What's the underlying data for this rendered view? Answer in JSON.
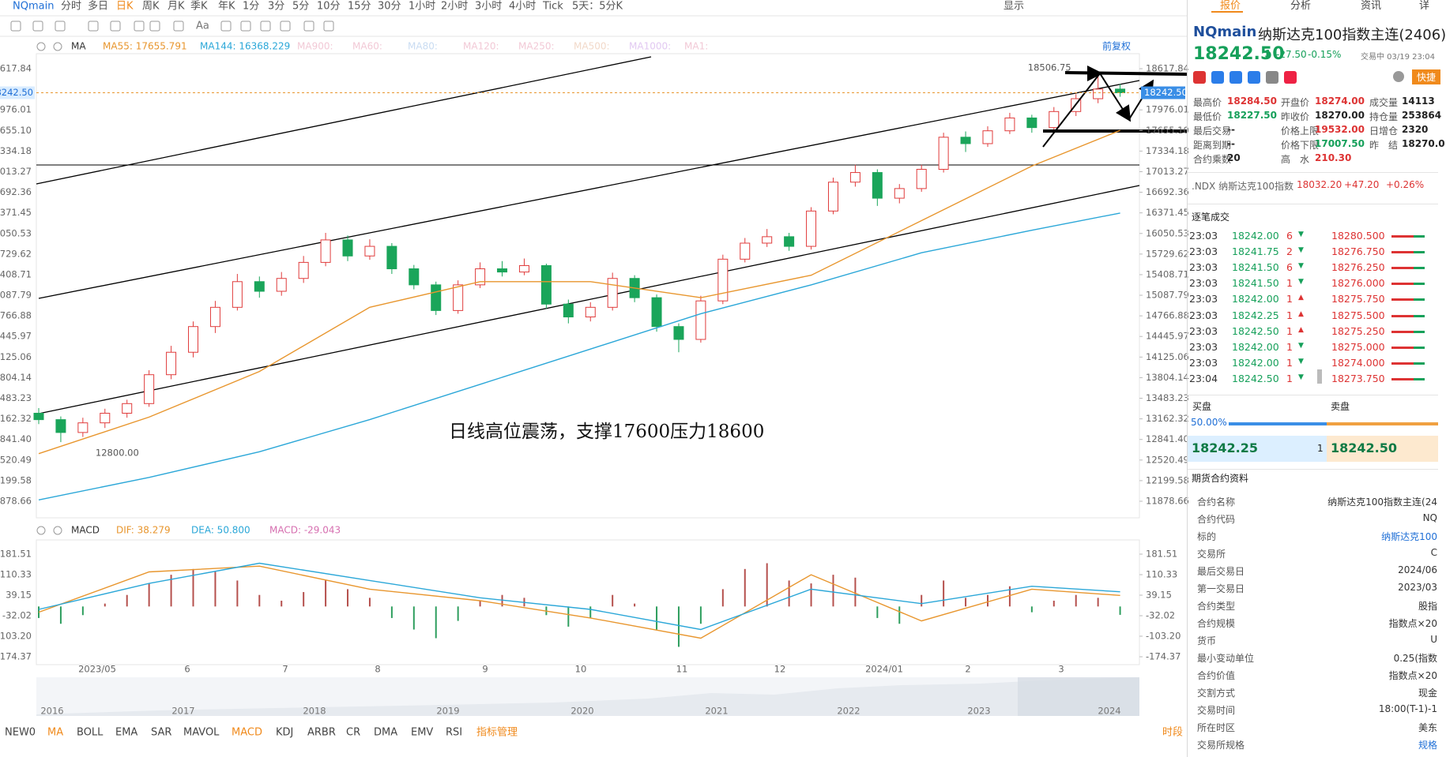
{
  "toolbar": {
    "symbol": "NQmain",
    "periods": [
      "分时",
      "多日",
      "日K",
      "周K",
      "月K",
      "季K",
      "年K",
      "1分",
      "3分",
      "5分",
      "10分",
      "15分",
      "30分",
      "1小时",
      "2小时",
      "3小时",
      "4小时",
      "Tick",
      "5天：5分K"
    ],
    "display": "显示",
    "font_tool": "Aa"
  },
  "ma_bar": {
    "label": "MA",
    "items": [
      {
        "text": "MA55: 17655.791",
        "color": "#e8962e"
      },
      {
        "text": "MA144: 16368.229",
        "color": "#2ba7d8"
      },
      {
        "text": "MA900:",
        "color": "#f2c9d6"
      },
      {
        "text": "MA60:",
        "color": "#f2c9d6"
      },
      {
        "text": "MA80:",
        "color": "#c9dcf2"
      },
      {
        "text": "MA120:",
        "color": "#f2c9d6"
      },
      {
        "text": "MA250:",
        "color": "#f2c9d6"
      },
      {
        "text": "MA500:",
        "color": "#f2d9c9"
      },
      {
        "text": "MA1000:",
        "color": "#e2c9f2"
      },
      {
        "text": "MA1:",
        "color": "#f2c9d6"
      }
    ],
    "adjust": "前复权"
  },
  "annotation": "日线高位震荡，支撑17600压力18600",
  "chart_data": {
    "type": "candlestick",
    "ylim": [
      11878.66,
      18617.84
    ],
    "yticks": [
      18617.84,
      17976.01,
      {
        "value": 17655.1,
        "label": "17655.10"
      },
      17334.18,
      17013.27,
      16692.36,
      16371.45,
      16050.53,
      15729.62,
      15408.71,
      15087.79,
      14766.88,
      14445.97,
      14125.06,
      13804.14,
      13483.23,
      13162.32,
      {
        "value": 12841.4,
        "label": "12841.40"
      },
      12520.49,
      12199.58,
      11878.66
    ],
    "x_labels": [
      "2023/05",
      "6",
      "7",
      "8",
      "9",
      "10",
      "11",
      "12",
      "2024/01",
      "2",
      "3"
    ],
    "up_color": "#e03c3c",
    "down_color": "#1aa55a",
    "candles": [
      [
        13250,
        13330,
        13080,
        13150
      ],
      [
        13150,
        13200,
        12800,
        12950
      ],
      [
        12950,
        13180,
        12880,
        13100
      ],
      [
        13100,
        13320,
        13020,
        13250
      ],
      [
        13250,
        13460,
        13180,
        13400
      ],
      [
        13400,
        13920,
        13350,
        13850
      ],
      [
        13850,
        14300,
        13780,
        14200
      ],
      [
        14200,
        14680,
        14120,
        14600
      ],
      [
        14600,
        15000,
        14500,
        14900
      ],
      [
        14900,
        15420,
        14850,
        15300
      ],
      [
        15300,
        15380,
        15050,
        15150
      ],
      [
        15150,
        15450,
        15080,
        15350
      ],
      [
        15350,
        15700,
        15280,
        15600
      ],
      [
        15600,
        16060,
        15540,
        15950
      ],
      [
        15950,
        16020,
        15620,
        15700
      ],
      [
        15700,
        15960,
        15640,
        15850
      ],
      [
        15850,
        15900,
        15420,
        15500
      ],
      [
        15500,
        15560,
        15180,
        15250
      ],
      [
        15250,
        15300,
        14780,
        14850
      ],
      [
        14850,
        15320,
        14800,
        15250
      ],
      [
        15250,
        15600,
        15200,
        15500
      ],
      [
        15500,
        15620,
        15380,
        15450
      ],
      [
        15450,
        15660,
        15400,
        15550
      ],
      [
        15550,
        15580,
        14880,
        14950
      ],
      [
        14950,
        15020,
        14650,
        14750
      ],
      [
        14750,
        14980,
        14680,
        14900
      ],
      [
        14900,
        15440,
        14850,
        15350
      ],
      [
        15350,
        15400,
        14980,
        15050
      ],
      [
        15050,
        15100,
        14520,
        14600
      ],
      [
        14600,
        14650,
        14200,
        14400
      ],
      [
        14400,
        15080,
        14350,
        15000
      ],
      [
        15000,
        15720,
        14950,
        15650
      ],
      [
        15650,
        15980,
        15600,
        15900
      ],
      [
        15900,
        16120,
        15840,
        16000
      ],
      [
        16000,
        16060,
        15780,
        15850
      ],
      [
        15850,
        16460,
        15800,
        16400
      ],
      [
        16400,
        16920,
        16350,
        16850
      ],
      [
        16850,
        17120,
        16780,
        17000
      ],
      [
        17000,
        17050,
        16480,
        16600
      ],
      [
        16600,
        16820,
        16520,
        16750
      ],
      [
        16750,
        17120,
        16700,
        17050
      ],
      [
        17050,
        17620,
        17000,
        17550
      ],
      [
        17550,
        17640,
        17320,
        17450
      ],
      [
        17450,
        17720,
        17400,
        17650
      ],
      [
        17650,
        17930,
        17600,
        17850
      ],
      [
        17850,
        17900,
        17620,
        17700
      ],
      [
        17700,
        18020,
        17650,
        17950
      ],
      [
        17950,
        18220,
        17880,
        18150
      ],
      [
        18150,
        18506.75,
        18080,
        18300
      ],
      [
        18300,
        18380,
        18180,
        18242.5
      ]
    ],
    "series": [
      {
        "color": "#e8962e",
        "x": [
          0,
          5,
          10,
          15,
          20,
          25,
          30,
          35,
          40,
          45,
          49
        ],
        "values": [
          12620,
          13190,
          13900,
          14900,
          15300,
          15300,
          15050,
          15400,
          16250,
          17100,
          17655.791
        ]
      },
      {
        "color": "#2ba7d8",
        "x": [
          0,
          5,
          10,
          15,
          20,
          25,
          30,
          35,
          40,
          45,
          49
        ],
        "values": [
          11900,
          12250,
          12650,
          13150,
          13700,
          14250,
          14800,
          15250,
          15750,
          16100,
          16368.229
        ]
      }
    ],
    "last_price": {
      "value": 18242.5,
      "label": "18242.50"
    },
    "high_label": 18506.75,
    "low_label": {
      "value": 12800,
      "label": "12800.00"
    }
  },
  "macd": {
    "legend": [
      {
        "text": "MACD",
        "color": "#333"
      },
      {
        "text": "DIF: 38.279",
        "color": "#e8962e"
      },
      {
        "text": "DEA: 50.800",
        "color": "#2ba7d8"
      },
      {
        "text": "MACD: -29.043",
        "color": "#d66fb0"
      }
    ],
    "ylim": [
      -174.37,
      181.51
    ],
    "yticks": [
      181.51,
      110.33,
      39.15,
      -32.02,
      {
        "value": -103.2,
        "label": "-103.20"
      },
      -174.37
    ],
    "pos_color": "#b5504d",
    "neg_color": "#2e9e5e",
    "histogram": [
      -40,
      -60,
      -30,
      10,
      40,
      80,
      110,
      130,
      120,
      90,
      40,
      20,
      50,
      90,
      60,
      30,
      -40,
      -80,
      -110,
      -50,
      20,
      40,
      30,
      -30,
      -70,
      -40,
      40,
      10,
      -80,
      -140,
      -60,
      60,
      130,
      150,
      90,
      80,
      110,
      100,
      -40,
      -60,
      40,
      90,
      30,
      40,
      70,
      -20,
      20,
      40,
      30,
      -29.043
    ],
    "series": [
      {
        "color": "#e8962e",
        "x": [
          0,
          5,
          10,
          15,
          20,
          25,
          30,
          35,
          40,
          45,
          49
        ],
        "values": [
          -20,
          120,
          140,
          60,
          20,
          -40,
          -110,
          110,
          -50,
          60,
          38.279
        ]
      },
      {
        "color": "#2ba7d8",
        "x": [
          0,
          5,
          10,
          15,
          20,
          25,
          30,
          35,
          40,
          45,
          49
        ],
        "values": [
          -10,
          80,
          150,
          90,
          30,
          -10,
          -80,
          60,
          10,
          70,
          50.8
        ]
      }
    ]
  },
  "overview_years": [
    "2016",
    "2017",
    "2018",
    "2019",
    "2020",
    "2021",
    "2022",
    "2023",
    "2024"
  ],
  "indicator_tabs": [
    "NEW0",
    "MA",
    "BOLL",
    "EMA",
    "SAR",
    "MAVOL",
    "MACD",
    "KDJ",
    "ARBR",
    "CR",
    "DMA",
    "EMV",
    "RSI",
    "指标管理"
  ],
  "period_button": "时段",
  "right": {
    "tabs": [
      "报价",
      "分析",
      "资讯",
      "详"
    ],
    "symbol": "NQmain",
    "name": "纳斯达克100指数主连(2406)",
    "price": "18242.50",
    "arrow": "⬇",
    "change": "-27.50",
    "pct": "-0.15%",
    "status": "交易中 03/19 23:04",
    "quick": "快捷",
    "stats": [
      [
        "最高价",
        "18284.50"
      ],
      [
        "开盘价",
        "18274.00"
      ],
      [
        "成交量",
        "14113"
      ],
      [
        "最低价",
        "18227.50"
      ],
      [
        "昨收价",
        "18270.00"
      ],
      [
        "持仓量",
        "253864"
      ],
      [
        "最后交易",
        "--"
      ],
      [
        "价格上限",
        "19532.00"
      ],
      [
        "日增仓",
        "2320"
      ],
      [
        "距离到期",
        "--"
      ],
      [
        "价格下限",
        "17007.50"
      ],
      [
        "昨　结",
        "18270.0"
      ],
      [
        "合约乘数",
        "20"
      ],
      [
        "高　水",
        "210.30"
      ]
    ],
    "index_line": [
      ".NDX 纳斯达克100指数",
      "18032.20",
      "+47.20",
      "+0.26%"
    ],
    "trades_title": "逐笔成交",
    "trades": [
      [
        "23:03",
        "18242.00",
        "6",
        "▼"
      ],
      [
        "23:03",
        "18241.75",
        "2",
        "▼"
      ],
      [
        "23:03",
        "18241.50",
        "6",
        "▼"
      ],
      [
        "23:03",
        "18241.50",
        "1",
        "▼"
      ],
      [
        "23:03",
        "18242.00",
        "1",
        "▲"
      ],
      [
        "23:03",
        "18242.25",
        "1",
        "▲"
      ],
      [
        "23:03",
        "18242.50",
        "1",
        "▲"
      ],
      [
        "23:03",
        "18242.00",
        "1",
        "▼"
      ],
      [
        "23:03",
        "18242.00",
        "1",
        "▼"
      ],
      [
        "23:04",
        "18242.50",
        "1",
        "▼"
      ]
    ],
    "book": [
      "18280.500",
      "18276.750",
      "18276.250",
      "18276.000",
      "18275.750",
      "18275.500",
      "18275.250",
      "18275.000",
      "18274.000",
      "18273.750"
    ],
    "bid_title": "买盘",
    "ask_title": "卖盘",
    "ratio": "50.00%",
    "bid": "18242.25",
    "bid_qty": "1",
    "ask": "18242.50",
    "info_title": "期货合约资料",
    "info": [
      [
        "合约名称",
        "纳斯达克100指数主连(24"
      ],
      [
        "合约代码",
        "NQ"
      ],
      [
        "标的",
        "纳斯达克100"
      ],
      [
        "交易所",
        "C"
      ],
      [
        "最后交易日",
        "2024/06"
      ],
      [
        "第一交易日",
        "2023/03"
      ],
      [
        "合约类型",
        "股指"
      ],
      [
        "合约规模",
        "指数点×20"
      ],
      [
        "货币",
        "U"
      ],
      [
        "最小变动单位",
        "0.25(指数"
      ],
      [
        "合约价值",
        "指数点×20"
      ],
      [
        "交割方式",
        "现金"
      ],
      [
        "交易时间",
        "18:00(T-1)-1"
      ],
      [
        "所在时区",
        "美东"
      ],
      [
        "交易所规格",
        "规格"
      ]
    ]
  }
}
